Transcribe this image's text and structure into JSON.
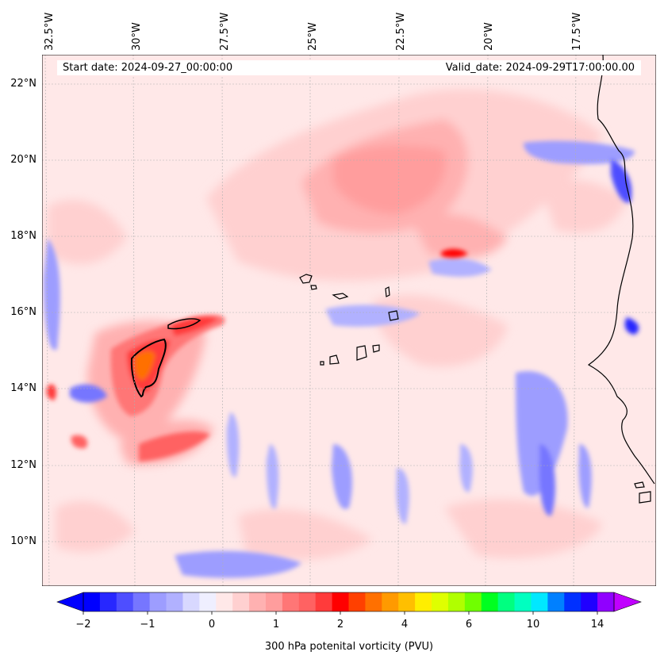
{
  "map": {
    "longitude_labels": [
      "32.5°W",
      "30°W",
      "27.5°W",
      "25°W",
      "22.5°W",
      "20°W",
      "17.5°W"
    ],
    "latitude_labels": [
      "22°N",
      "20°N",
      "18°N",
      "16°N",
      "14°N",
      "12°N",
      "10°N"
    ],
    "start_date_label": "Start date: 2024-09-27_00:00:00",
    "valid_date_label": "Valid_date: 2024-09-29T17:00:00.00",
    "field": "300 hPa potenital vorticity (PVU)",
    "extent": {
      "lon_min": -32.6,
      "lon_max": -15.2,
      "lat_min": 8.8,
      "lat_max": 22.8
    }
  },
  "colorbar": {
    "title": "300 hPa potenital vorticity (PVU)",
    "tick_labels": [
      "−2",
      "−1",
      "0",
      "1",
      "2",
      "4",
      "6",
      "10",
      "14"
    ],
    "colors": [
      "#0000ff",
      "#2727ff",
      "#4e4eff",
      "#7676ff",
      "#9d9dff",
      "#b1b1ff",
      "#d8d8ff",
      "#efefff",
      "#ffe8e8",
      "#ffd0d0",
      "#ffb1b1",
      "#ff9d9d",
      "#ff7676",
      "#ff6262",
      "#ff3b3b",
      "#ff0000",
      "#ff4000",
      "#ff7000",
      "#ff9a00",
      "#ffbf00",
      "#ffee00",
      "#dfff00",
      "#b0ff00",
      "#70ff00",
      "#00ff20",
      "#00ff80",
      "#00ffc0",
      "#00e8ff",
      "#0080ff",
      "#0030ff",
      "#2000ff",
      "#9000ff"
    ],
    "under_color": "#0000ff",
    "over_color": "#c000ff"
  }
}
